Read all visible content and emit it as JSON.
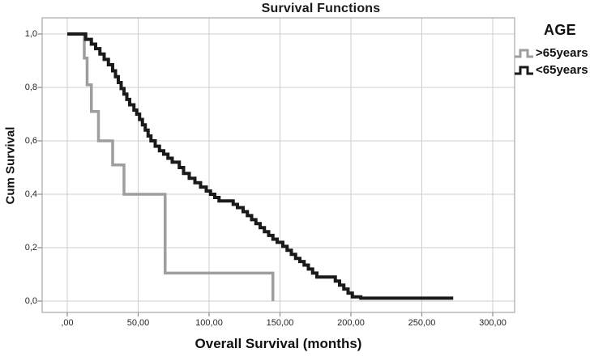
{
  "figure": {
    "title": "Survival Functions",
    "x_axis_label": "Overall Survival (months)",
    "y_axis_label": "Cum Survival",
    "x_tick_labels": [
      ",00",
      "50,00",
      "100,00",
      "150,00",
      "200,00",
      "250,00",
      "300,00"
    ],
    "y_tick_labels": [
      "0,0",
      "0,2",
      "0,4",
      "0,6",
      "0,8",
      "1,0"
    ]
  },
  "legend": {
    "title": "AGE",
    "entries": [
      {
        "label": ">65years",
        "color": "#9e9e9e"
      },
      {
        "label": "<65years",
        "color": "#1a1a1a"
      }
    ]
  },
  "colors": {
    "background": "#ffffff",
    "gridline": "#cccccc",
    "frame": "#a8a8a8",
    "tick": "#8c8c8c",
    "text": "#1a1a1a",
    "curve_over65": "#9e9e9e",
    "curve_under65": "#1a1a1a"
  },
  "chart_data": {
    "type": "line",
    "subtype": "kaplan-meier-step",
    "title": "Survival Functions",
    "xlabel": "Overall Survival (months)",
    "ylabel": "Cum Survival",
    "xlim": [
      0,
      300
    ],
    "ylim": [
      0.0,
      1.0
    ],
    "xticks": [
      0,
      50,
      100,
      150,
      200,
      250,
      300
    ],
    "yticks": [
      0.0,
      0.2,
      0.4,
      0.6,
      0.8,
      1.0
    ],
    "grid": true,
    "legend_position": "right",
    "legend_title": "AGE",
    "series": [
      {
        "name": ">65years",
        "color": "#9e9e9e",
        "points": [
          [
            0,
            1.0
          ],
          [
            12,
            0.91
          ],
          [
            14,
            0.81
          ],
          [
            17,
            0.71
          ],
          [
            22,
            0.6
          ],
          [
            32,
            0.51
          ],
          [
            40,
            0.4
          ],
          [
            69,
            0.105
          ],
          [
            145,
            0.0
          ]
        ]
      },
      {
        "name": "<65years",
        "color": "#1a1a1a",
        "points": [
          [
            0,
            1.0
          ],
          [
            13,
            0.98
          ],
          [
            17,
            0.962
          ],
          [
            20,
            0.945
          ],
          [
            23,
            0.925
          ],
          [
            26,
            0.905
          ],
          [
            29,
            0.885
          ],
          [
            32,
            0.862
          ],
          [
            34,
            0.84
          ],
          [
            36,
            0.818
          ],
          [
            38,
            0.796
          ],
          [
            40,
            0.775
          ],
          [
            42,
            0.755
          ],
          [
            44,
            0.735
          ],
          [
            47,
            0.715
          ],
          [
            49,
            0.7
          ],
          [
            51,
            0.68
          ],
          [
            53,
            0.66
          ],
          [
            55,
            0.64
          ],
          [
            57,
            0.618
          ],
          [
            59,
            0.6
          ],
          [
            62,
            0.58
          ],
          [
            65,
            0.563
          ],
          [
            68,
            0.55
          ],
          [
            71,
            0.535
          ],
          [
            74,
            0.52
          ],
          [
            79,
            0.5
          ],
          [
            82,
            0.478
          ],
          [
            86,
            0.46
          ],
          [
            90,
            0.443
          ],
          [
            94,
            0.427
          ],
          [
            98,
            0.412
          ],
          [
            101,
            0.4
          ],
          [
            104,
            0.388
          ],
          [
            107,
            0.375
          ],
          [
            117,
            0.362
          ],
          [
            120,
            0.35
          ],
          [
            124,
            0.335
          ],
          [
            127,
            0.32
          ],
          [
            130,
            0.305
          ],
          [
            133,
            0.29
          ],
          [
            136,
            0.275
          ],
          [
            139,
            0.26
          ],
          [
            142,
            0.246
          ],
          [
            145,
            0.232
          ],
          [
            148,
            0.22
          ],
          [
            152,
            0.205
          ],
          [
            155,
            0.19
          ],
          [
            158,
            0.175
          ],
          [
            161,
            0.16
          ],
          [
            164,
            0.148
          ],
          [
            167,
            0.135
          ],
          [
            170,
            0.12
          ],
          [
            173,
            0.105
          ],
          [
            176,
            0.09
          ],
          [
            189,
            0.075
          ],
          [
            192,
            0.06
          ],
          [
            195,
            0.045
          ],
          [
            198,
            0.03
          ],
          [
            201,
            0.016
          ],
          [
            207,
            0.011
          ],
          [
            271,
            0.005
          ]
        ]
      }
    ]
  }
}
